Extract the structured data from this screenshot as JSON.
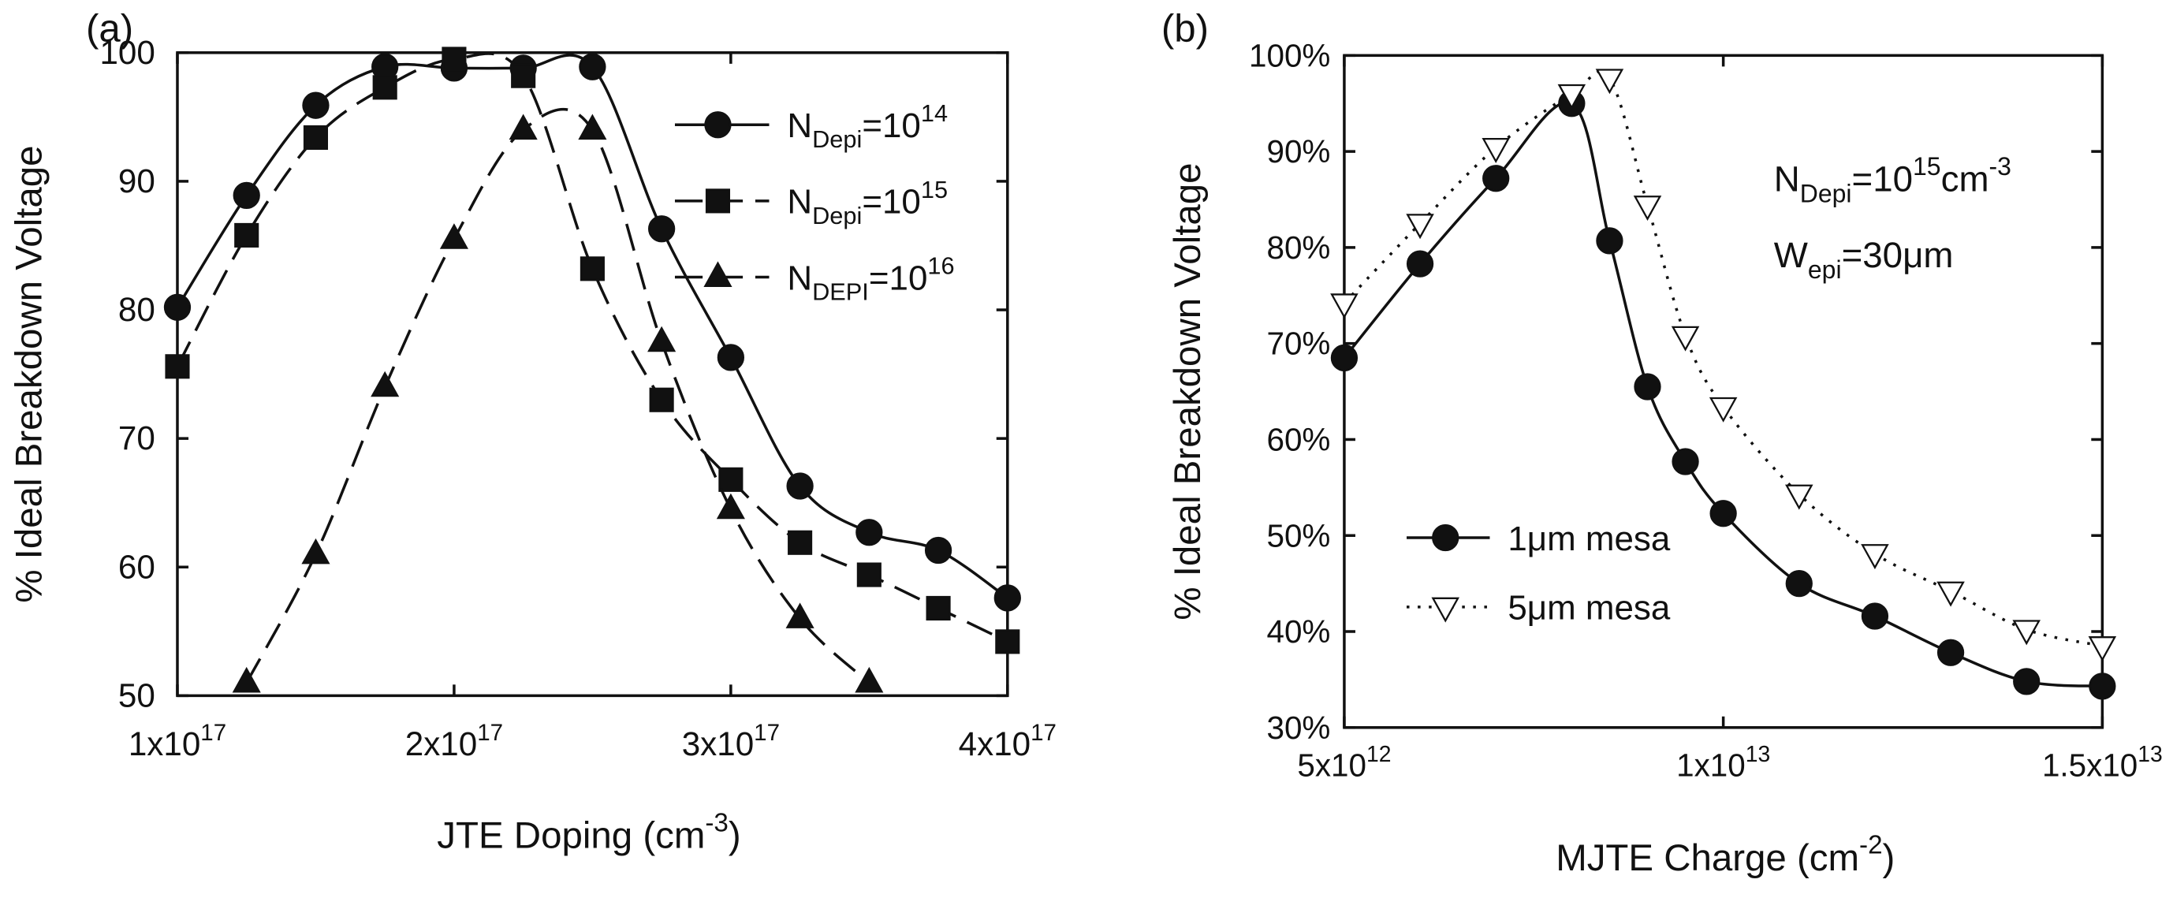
{
  "chart_data": [
    {
      "type": "line",
      "panel": "(a)",
      "ylabel": "% Ideal Breakdown Voltage",
      "xlabel": [
        {
          "text": "JTE Doping (cm"
        },
        {
          "text": "-3",
          "sup": true
        },
        {
          "text": ")"
        }
      ],
      "xlim": [
        1e+17,
        4e+17
      ],
      "ylim": [
        50,
        100
      ],
      "xticks": [
        {
          "value": 1e+17,
          "label": [
            {
              "text": "1x10"
            },
            {
              "text": "17",
              "sup": true
            }
          ]
        },
        {
          "value": 2e+17,
          "label": [
            {
              "text": "2x10"
            },
            {
              "text": "17",
              "sup": true
            }
          ]
        },
        {
          "value": 3e+17,
          "label": [
            {
              "text": "3x10"
            },
            {
              "text": "17",
              "sup": true
            }
          ]
        },
        {
          "value": 4e+17,
          "label": [
            {
              "text": "4x10"
            },
            {
              "text": "17",
              "sup": true
            }
          ]
        }
      ],
      "yticks": [
        50,
        60,
        70,
        80,
        90,
        100
      ],
      "grid": false,
      "legend": "upper right",
      "series": [
        {
          "name": [
            {
              "text": "N"
            },
            {
              "text": "Depi",
              "sub": true
            },
            {
              "text": "=10"
            },
            {
              "text": "14",
              "sup": true
            }
          ],
          "color": "#111111",
          "marker": "circle",
          "filled": true,
          "dash": "solid",
          "x": [
            1e+17,
            1.25e+17,
            1.5e+17,
            1.75e+17,
            2e+17,
            2.25e+17,
            2.5e+17,
            2.75e+17,
            3e+17,
            3.25e+17,
            3.5e+17,
            3.75e+17,
            4e+17
          ],
          "values": [
            80.2,
            88.9,
            95.9,
            98.9,
            98.8,
            98.8,
            98.9,
            86.3,
            76.3,
            66.3,
            62.7,
            61.3,
            57.6
          ]
        },
        {
          "name": [
            {
              "text": "N"
            },
            {
              "text": "Depi",
              "sub": true
            },
            {
              "text": "=10"
            },
            {
              "text": "15",
              "sup": true
            }
          ],
          "color": "#111111",
          "marker": "square",
          "filled": true,
          "dash": "dashed",
          "x": [
            1e+17,
            1.25e+17,
            1.5e+17,
            1.75e+17,
            2e+17,
            2.25e+17,
            2.5e+17,
            2.75e+17,
            3e+17,
            3.25e+17,
            3.5e+17,
            3.75e+17,
            4e+17
          ],
          "values": [
            75.6,
            85.8,
            93.4,
            97.3,
            99.5,
            98.2,
            83.2,
            73.0,
            66.8,
            61.9,
            59.4,
            56.8,
            54.2
          ]
        },
        {
          "name": [
            {
              "text": "N"
            },
            {
              "text": "DEPI",
              "sub": true
            },
            {
              "text": "=10"
            },
            {
              "text": "16",
              "sup": true
            }
          ],
          "color": "#111111",
          "marker": "triangle",
          "filled": true,
          "dash": "dashed",
          "x": [
            1.25e+17,
            1.5e+17,
            1.75e+17,
            2e+17,
            2.25e+17,
            2.5e+17,
            2.75e+17,
            3e+17,
            3.25e+17,
            3.5e+17
          ],
          "values": [
            51,
            61,
            74,
            85.5,
            94,
            94,
            77.5,
            64.5,
            56,
            51
          ]
        }
      ]
    },
    {
      "type": "line",
      "panel": "(b)",
      "ylabel": "% Ideal Breakdown Voltage",
      "xlabel": [
        {
          "text": "MJTE Charge (cm"
        },
        {
          "text": "-2",
          "sup": true
        },
        {
          "text": ")"
        }
      ],
      "xlim": [
        5000000000000.0,
        15000000000000.0
      ],
      "ylim": [
        30,
        100
      ],
      "xticks": [
        {
          "value": 5000000000000.0,
          "label": [
            {
              "text": "5x10"
            },
            {
              "text": "12",
              "sup": true
            }
          ]
        },
        {
          "value": 10000000000000.0,
          "label": [
            {
              "text": "1x10"
            },
            {
              "text": "13",
              "sup": true
            }
          ]
        },
        {
          "value": 15000000000000.0,
          "label": [
            {
              "text": "1.5x10"
            },
            {
              "text": "13",
              "sup": true
            }
          ]
        }
      ],
      "yticks": [
        {
          "value": 30,
          "label": "30%"
        },
        {
          "value": 40,
          "label": "40%"
        },
        {
          "value": 50,
          "label": "50%"
        },
        {
          "value": 60,
          "label": "60%"
        },
        {
          "value": 70,
          "label": "70%"
        },
        {
          "value": 80,
          "label": "80%"
        },
        {
          "value": 90,
          "label": "90%"
        },
        {
          "value": 100,
          "label": "100%"
        }
      ],
      "grid": false,
      "legend": "lower left",
      "annotations": [
        [
          {
            "text": "N"
          },
          {
            "text": "Depi",
            "sub": true
          },
          {
            "text": "=10"
          },
          {
            "text": "15",
            "sup": true
          },
          {
            "text": "cm"
          },
          {
            "text": "-3",
            "sup": true
          }
        ],
        [
          {
            "text": "W"
          },
          {
            "text": "epi",
            "sub": true
          },
          {
            "text": "=30μm"
          }
        ]
      ],
      "series": [
        {
          "name": "1μm mesa",
          "color": "#111111",
          "marker": "circle",
          "filled": true,
          "dash": "solid",
          "x": [
            5000000000000.0,
            6000000000000.0,
            7000000000000.0,
            8000000000000.0,
            8500000000000.0,
            9000000000000.0,
            9500000000000.0,
            10000000000000.0,
            11000000000000.0,
            12000000000000.0,
            13000000000000.0,
            14000000000000.0,
            15000000000000.0
          ],
          "values": [
            68.5,
            78.3,
            87.2,
            95.0,
            80.7,
            65.5,
            57.7,
            52.3,
            45.0,
            41.6,
            37.8,
            34.8,
            34.3
          ]
        },
        {
          "name": "5μm mesa",
          "color": "#111111",
          "marker": "triangle-down",
          "filled": false,
          "dash": "dotted",
          "x": [
            5000000000000.0,
            6000000000000.0,
            7000000000000.0,
            8000000000000.0,
            8500000000000.0,
            9000000000000.0,
            9500000000000.0,
            10000000000000.0,
            11000000000000.0,
            12000000000000.0,
            13000000000000.0,
            14000000000000.0,
            15000000000000.0
          ],
          "values": [
            74.2,
            82.5,
            90.4,
            96.0,
            97.6,
            84.4,
            70.8,
            63.4,
            54.3,
            48.1,
            44.2,
            40.2,
            38.5
          ]
        }
      ]
    }
  ]
}
